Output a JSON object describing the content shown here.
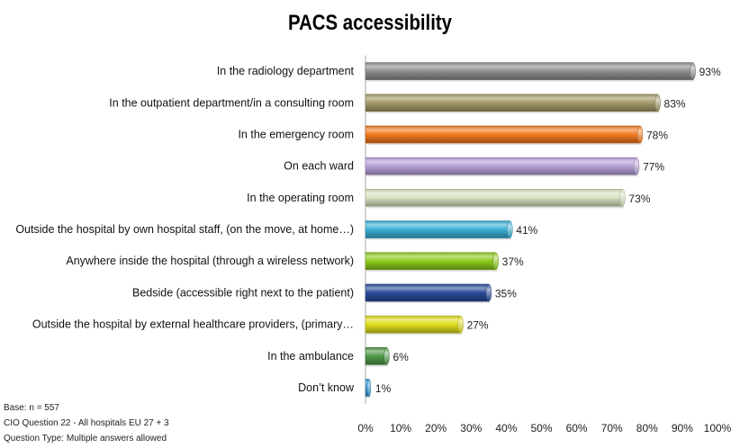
{
  "chart_data": {
    "type": "bar",
    "orientation": "horizontal",
    "title": "PACS accessibility",
    "categories": [
      "In the radiology department",
      "In the outpatient department/in a consulting room",
      "In the emergency room",
      "On each ward",
      "In the operating room",
      "Outside the hospital by own hospital staff, (on the move, at home…)",
      "Anywhere inside the hospital (through a wireless network)",
      "Bedside (accessible right next to the patient)",
      "Outside the hospital by external healthcare providers, (primary…",
      "In the ambulance",
      "Don’t know"
    ],
    "values": [
      93,
      83,
      78,
      77,
      73,
      41,
      37,
      35,
      27,
      6,
      1
    ],
    "value_labels": [
      "93%",
      "83%",
      "78%",
      "77%",
      "73%",
      "41%",
      "37%",
      "35%",
      "27%",
      "6%",
      "1%"
    ],
    "colors": [
      "#8e8e8e",
      "#a39a68",
      "#f27a1f",
      "#b7a1d8",
      "#d6e2bf",
      "#3bafd3",
      "#8ecb1e",
      "#2a4b98",
      "#dedd1e",
      "#4e9a4a",
      "#3b9cd7"
    ],
    "xlim": [
      0,
      100
    ],
    "x_ticks": [
      0,
      10,
      20,
      30,
      40,
      50,
      60,
      70,
      80,
      90,
      100
    ],
    "x_tick_labels": [
      "0%",
      "10%",
      "20%",
      "30%",
      "40%",
      "50%",
      "60%",
      "70%",
      "80%",
      "90%",
      "100%"
    ],
    "grid": false
  },
  "footnote": {
    "lines": [
      "Base: n = 557",
      "CIO Question 22 - All hospitals EU 27 + 3",
      "Question Type: Multiple answers allowed"
    ]
  }
}
